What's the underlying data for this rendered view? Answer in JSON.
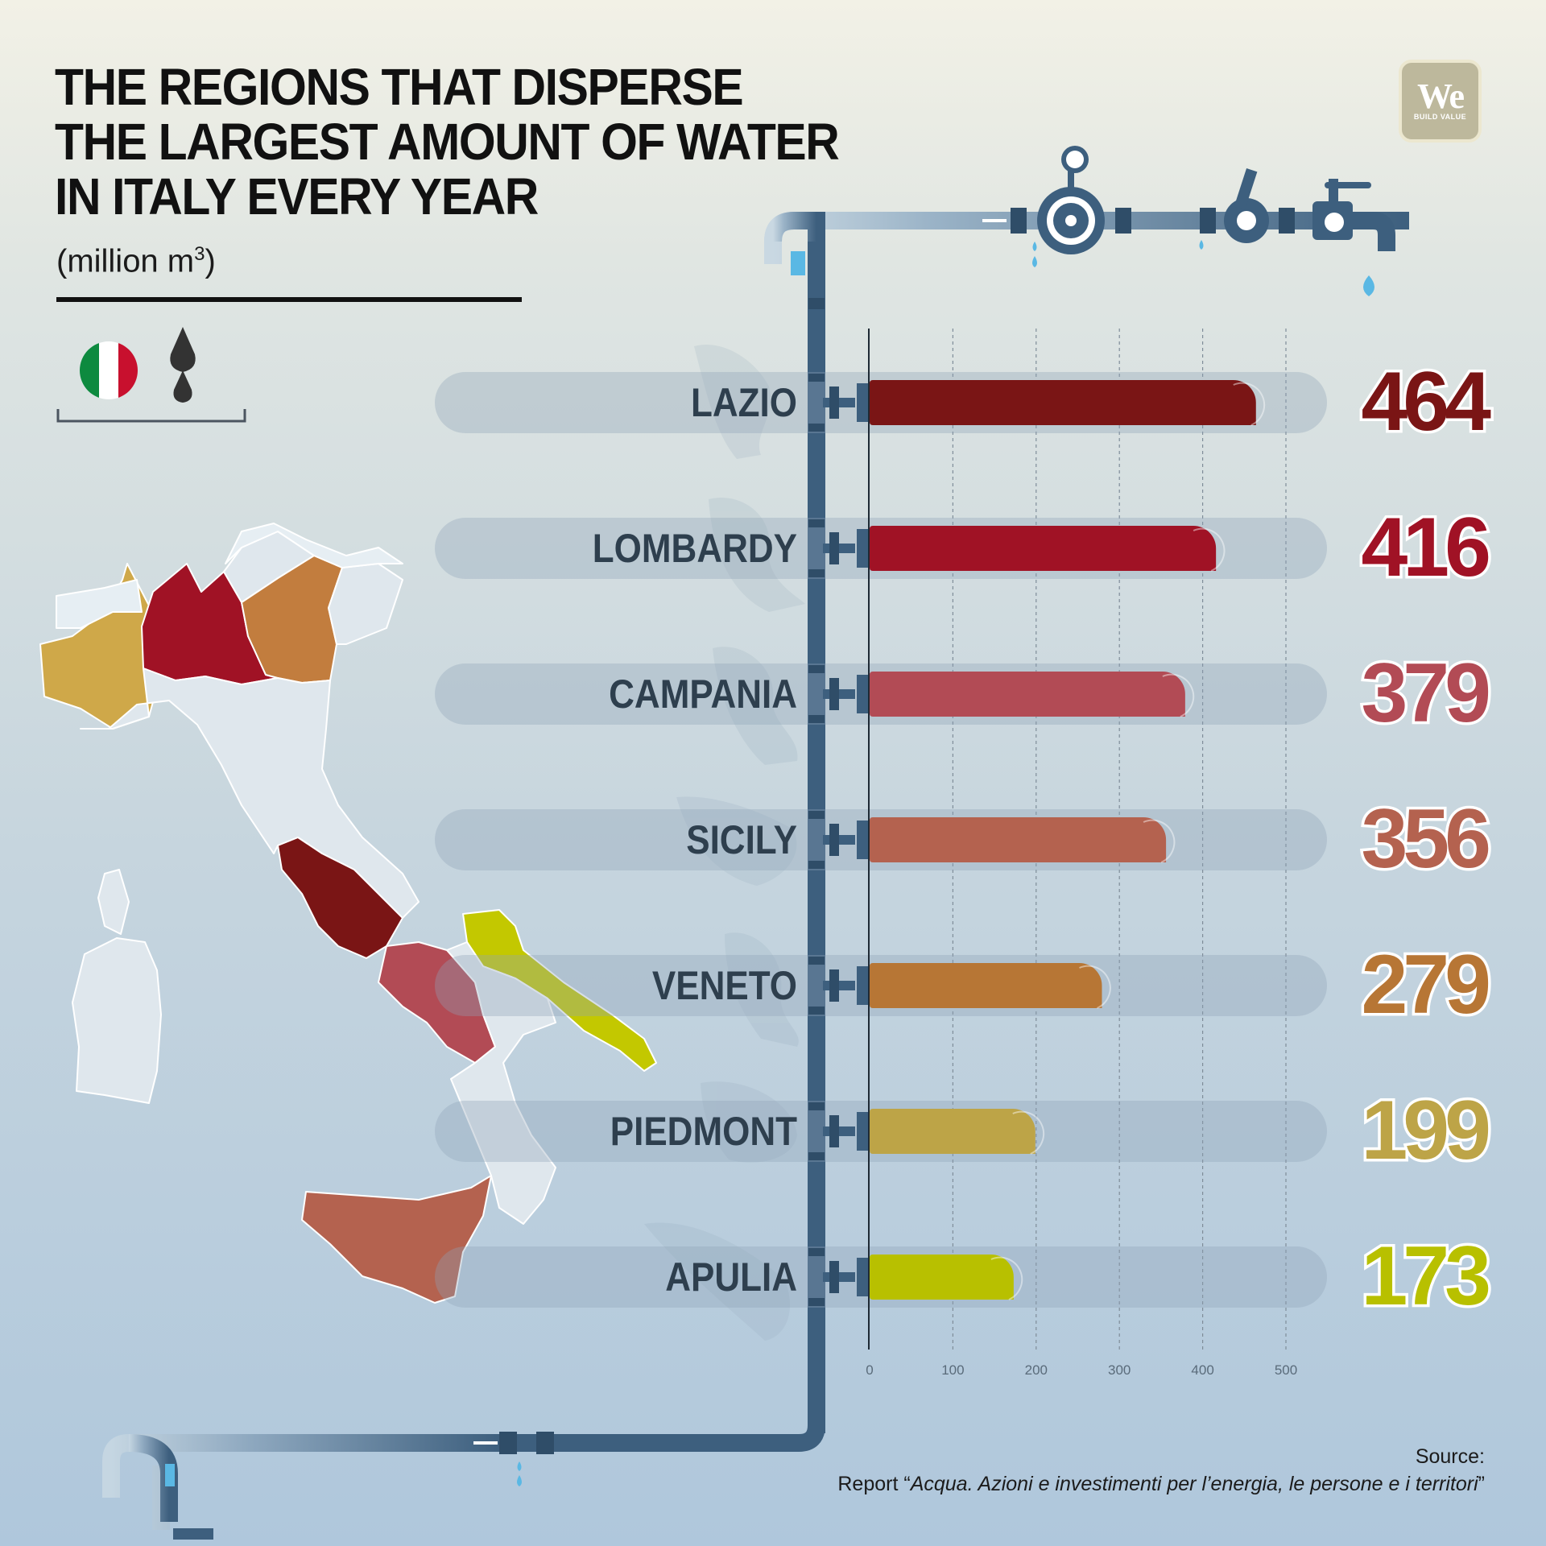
{
  "title_lines": [
    "THE REGIONS THAT DISPERSE",
    "THE LARGEST AMOUNT OF WATER",
    "IN ITALY EVERY YEAR"
  ],
  "unit": {
    "text": "(million m",
    "sup": "3",
    "close": ")"
  },
  "logo": {
    "word": "We",
    "tagline": "BUILD VALUE"
  },
  "source": {
    "heading": "Source:",
    "prefix": "Report “",
    "title": "Acqua. Azioni e investimenti per l’energia, le persone e i territori",
    "suffix": "”"
  },
  "colors": {
    "lazio": "#7a1515",
    "lombardy": "#a01225",
    "campania": "#b24b55",
    "sicily": "#b4624f",
    "veneto": "#b77635",
    "piedmont": "#bda447",
    "apulia": "#b8c000",
    "pipe": "#3d5f7e",
    "water": "#5ab8e4"
  },
  "chart_data": {
    "type": "bar",
    "orientation": "horizontal",
    "categories": [
      "LAZIO",
      "LOMBARDY",
      "CAMPANIA",
      "SICILY",
      "VENETO",
      "PIEDMONT",
      "APULIA"
    ],
    "values": [
      464,
      416,
      379,
      356,
      279,
      199,
      173
    ],
    "value_labels": [
      "464",
      "416",
      "379",
      "356",
      "279",
      "199",
      "173"
    ],
    "colors": [
      "#7a1515",
      "#a01225",
      "#b24b55",
      "#b4624f",
      "#b77635",
      "#bda447",
      "#b8c000"
    ],
    "xlim": [
      0,
      500
    ],
    "xticks": [
      0,
      100,
      200,
      300,
      400,
      500
    ],
    "grid": true
  }
}
